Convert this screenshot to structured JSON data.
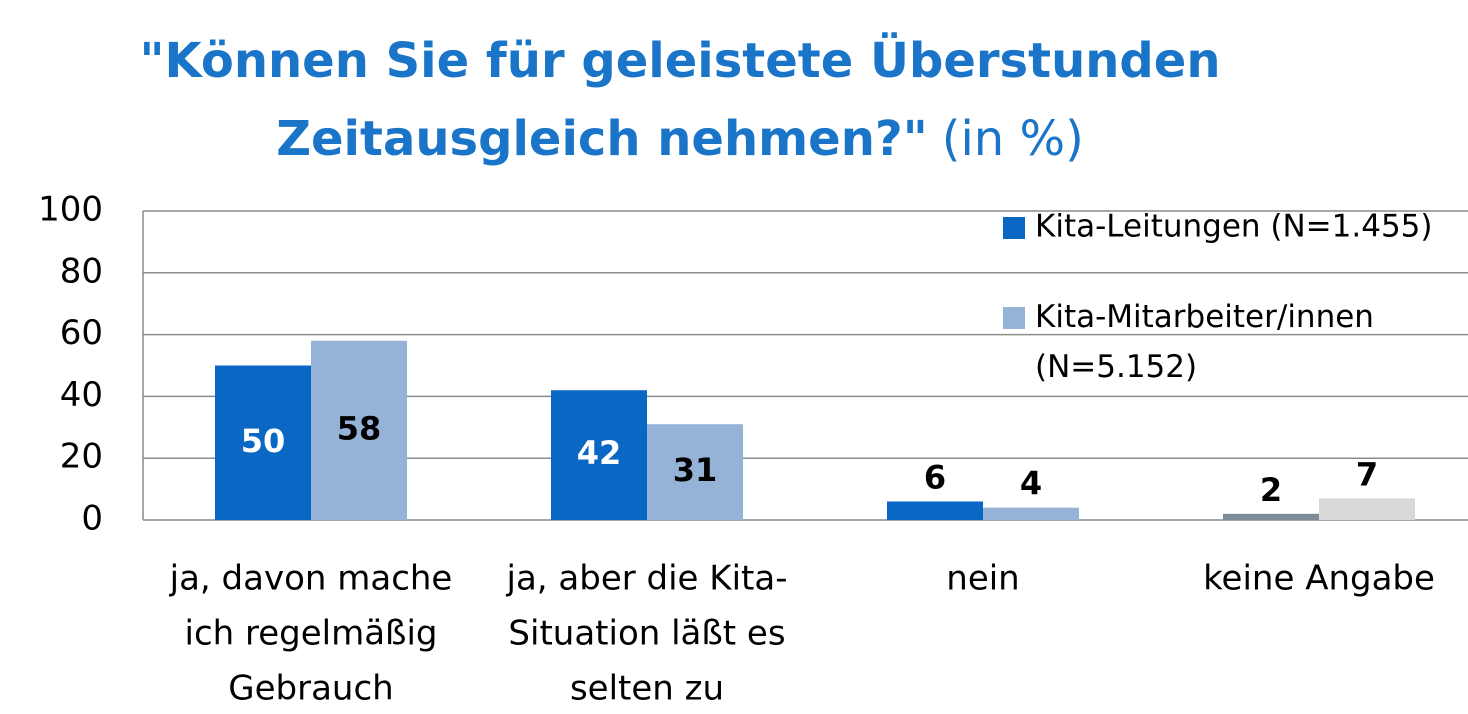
{
  "chart_data": {
    "type": "bar",
    "title": [
      "\"Können Sie für geleistete Überstunden",
      "Zeitausgleich nehmen?\""
    ],
    "subtitle": "(in %)",
    "categories": [
      [
        "ja, davon mache",
        "ich regelmäßig",
        "Gebrauch"
      ],
      [
        "ja, aber die Kita-",
        "Situation läßt es",
        "selten zu"
      ],
      [
        "nein"
      ],
      [
        "keine Angabe"
      ]
    ],
    "series": [
      {
        "name": "Kita-Leitungen (N=1.455)",
        "color": "#0a67c4",
        "colors": [
          "#0a67c4",
          "#0a67c4",
          "#0a67c4",
          "#7d8b99"
        ],
        "label_color": "#ffffff",
        "values": [
          50,
          42,
          6,
          2
        ]
      },
      {
        "name": "Kita-Mitarbeiter/innen (N=5.152)",
        "color": "#95b3d7",
        "colors": [
          "#95b3d7",
          "#95b3d7",
          "#95b3d7",
          "#d9d9d9"
        ],
        "label_color": "#000000",
        "values": [
          58,
          31,
          4,
          7
        ]
      }
    ],
    "ylim": [
      0,
      100
    ],
    "yticks": [
      0,
      20,
      40,
      60,
      80,
      100
    ],
    "grid": true,
    "legend": "top-right"
  }
}
